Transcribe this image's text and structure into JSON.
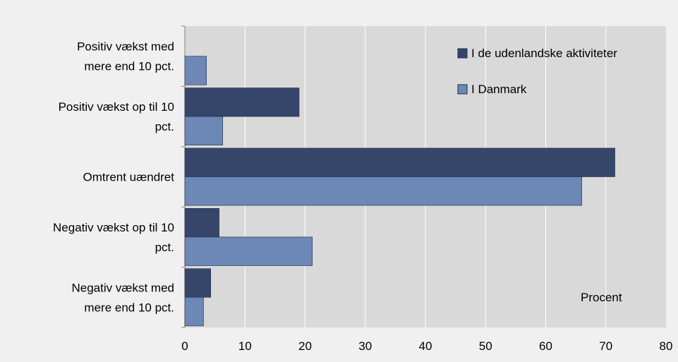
{
  "chart_data": {
    "type": "bar",
    "orientation": "horizontal",
    "categories": [
      [
        "Positiv vækst med",
        "mere end 10 pct."
      ],
      [
        "Positiv vækst op til 10",
        "pct."
      ],
      [
        "Omtrent uændret"
      ],
      [
        "Negativ vækst op til 10",
        "pct."
      ],
      [
        "Negativ vækst med",
        "mere end 10 pct."
      ]
    ],
    "series": [
      {
        "name": "I de udenlandske aktiviteter",
        "color": "#36466b",
        "values": [
          0,
          19,
          71.5,
          5.7,
          4.3
        ]
      },
      {
        "name": "I Danmark",
        "color": "#6d87b6",
        "values": [
          3.6,
          6.3,
          66,
          21.2,
          3.1
        ]
      }
    ],
    "xlim": [
      0,
      80
    ],
    "xticks": [
      0,
      10,
      20,
      30,
      40,
      50,
      60,
      70,
      80
    ],
    "unit_label": "Procent",
    "grid": true,
    "legend_position": "top-right",
    "colors": {
      "plot_background": "#d9d9d9",
      "gridline": "#ffffff",
      "page_background": "#f0f0f0"
    }
  }
}
